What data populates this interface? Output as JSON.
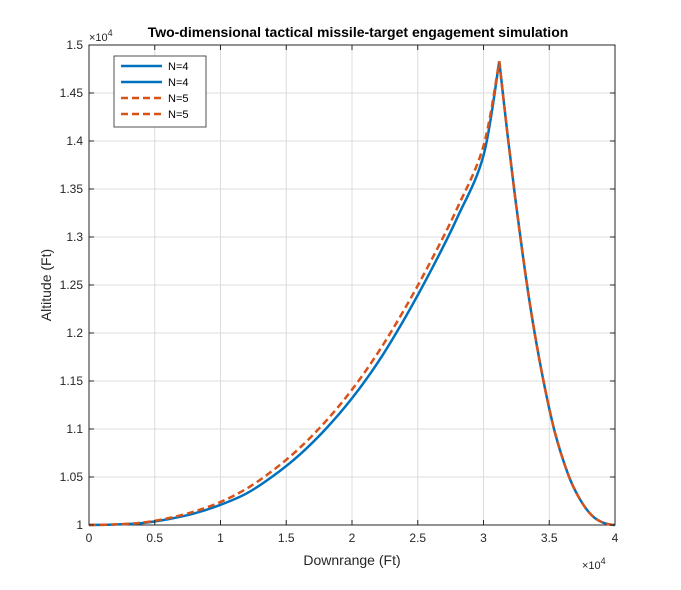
{
  "chart_data": {
    "type": "line",
    "title": "Two-dimensional tactical missile-target engagement simulation",
    "xlabel": "Downrange (Ft)",
    "ylabel": "Altitude (Ft)",
    "x_multiplier": "×10",
    "x_exponent": "4",
    "y_multiplier": "×10",
    "y_exponent": "4",
    "xlim": [
      0,
      40000
    ],
    "ylim": [
      10000,
      15000
    ],
    "xticks": [
      0,
      5000,
      10000,
      15000,
      20000,
      25000,
      30000,
      35000,
      40000
    ],
    "xtick_labels": [
      "0",
      "0.5",
      "1",
      "1.5",
      "2",
      "2.5",
      "3",
      "3.5",
      "4"
    ],
    "yticks": [
      10000,
      10500,
      11000,
      11500,
      12000,
      12500,
      13000,
      13500,
      14000,
      14500,
      15000
    ],
    "ytick_labels": [
      "1",
      "1.05",
      "1.1",
      "1.15",
      "1.2",
      "1.25",
      "1.3",
      "1.35",
      "1.4",
      "1.45",
      "1.5"
    ],
    "grid": true,
    "legend_position": "top-left",
    "series": [
      {
        "name": "N=4",
        "color": "#0072BD",
        "style": "solid",
        "x": [
          0,
          2000,
          4000,
          6000,
          8000,
          10000,
          12000,
          14000,
          16000,
          18000,
          20000,
          22000,
          24000,
          26000,
          28000,
          30000,
          31200
        ],
        "y": [
          10000,
          10005,
          10020,
          10060,
          10120,
          10210,
          10330,
          10510,
          10730,
          11000,
          11320,
          11700,
          12150,
          12650,
          13200,
          13850,
          14830
        ]
      },
      {
        "name": "N=4",
        "color": "#0072BD",
        "style": "solid",
        "x": [
          31200,
          31800,
          32400,
          33000,
          33600,
          34200,
          34800,
          35400,
          36000,
          36600,
          37200,
          37800,
          38400,
          39000,
          39600,
          40000
        ],
        "y": [
          14830,
          14100,
          13420,
          12800,
          12240,
          11760,
          11340,
          10980,
          10700,
          10470,
          10300,
          10170,
          10080,
          10030,
          10005,
          10000
        ]
      },
      {
        "name": "N=5",
        "color": "#D95319",
        "style": "dashed",
        "x": [
          0,
          2000,
          4000,
          6000,
          8000,
          10000,
          12000,
          14000,
          16000,
          18000,
          20000,
          22000,
          24000,
          26000,
          28000,
          30000,
          31200
        ],
        "y": [
          10000,
          10006,
          10024,
          10070,
          10140,
          10240,
          10380,
          10570,
          10800,
          11080,
          11410,
          11800,
          12250,
          12750,
          13300,
          13950,
          14830
        ]
      },
      {
        "name": "N=5",
        "color": "#D95319",
        "style": "dashed",
        "x": [
          31200,
          31800,
          32400,
          33000,
          33600,
          34200,
          34800,
          35400,
          36000,
          36600,
          37200,
          37800,
          38400,
          39000,
          39600,
          40000
        ],
        "y": [
          14830,
          14100,
          13420,
          12800,
          12240,
          11760,
          11340,
          10980,
          10700,
          10470,
          10300,
          10170,
          10080,
          10030,
          10005,
          10000
        ]
      }
    ]
  }
}
